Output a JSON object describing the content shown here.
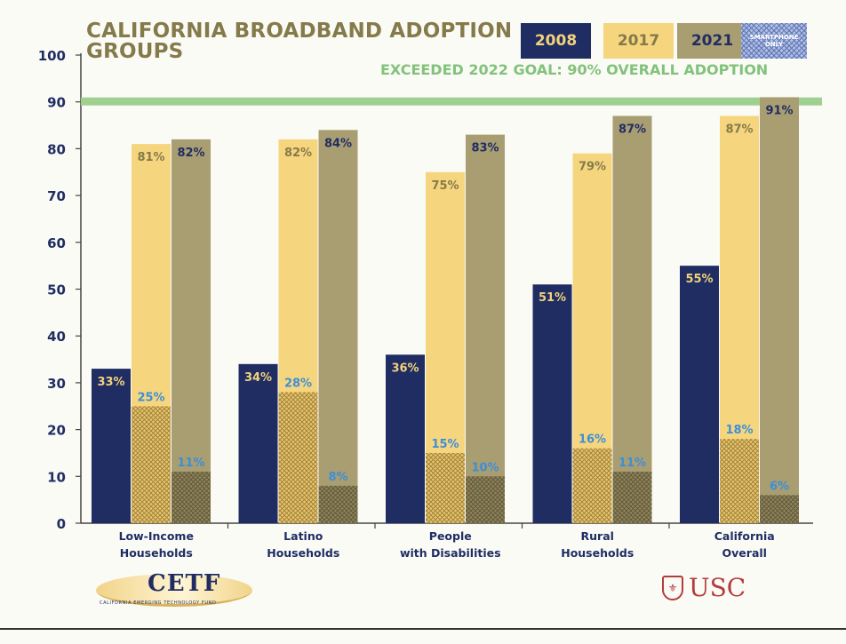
{
  "header": {
    "title_line1": "CALIFORNIA BROADBAND ADOPTION",
    "title_line2": "GROUPS",
    "goal_text": "EXCEEDED 2022 GOAL:  90% OVERALL ADOPTION"
  },
  "legend": {
    "y2008": "2008",
    "y2017": "2017",
    "y2021": "2021",
    "smartphone_line1": "SMARTPHONE",
    "smartphone_line2": "ONLY"
  },
  "logos": {
    "cetf_word": "CETF",
    "cetf_sub": "CALIFORNIA EMERGING TECHNOLOGY FUND",
    "usc_word": "USC"
  },
  "colors": {
    "navy": "#1f2d63",
    "gold": "#f6d57f",
    "khaki": "#a99d72",
    "goal_line": "#9fd08f",
    "label_blue": "#3d8fd6"
  },
  "chart_data": {
    "type": "bar",
    "title": "CALIFORNIA BROADBAND ADOPTION GROUPS",
    "ylim": [
      0,
      100
    ],
    "yticks": [
      0,
      10,
      20,
      30,
      40,
      50,
      60,
      70,
      80,
      90,
      100
    ],
    "categories": [
      [
        "Low-Income",
        "Households"
      ],
      [
        "Latino",
        "Households"
      ],
      [
        "People",
        "with Disabilities"
      ],
      [
        "Rural",
        "Households"
      ],
      [
        "California",
        "Overall"
      ]
    ],
    "series": [
      {
        "name": "2008",
        "values": [
          33,
          34,
          36,
          51,
          55
        ]
      },
      {
        "name": "2017",
        "values": [
          81,
          82,
          75,
          79,
          87
        ]
      },
      {
        "name": "2021",
        "values": [
          82,
          84,
          83,
          87,
          91
        ]
      }
    ],
    "smartphone_only": [
      {
        "name": "2017",
        "values": [
          25,
          28,
          15,
          16,
          18
        ]
      },
      {
        "name": "2021",
        "values": [
          11,
          8,
          10,
          11,
          6
        ]
      }
    ],
    "goal": {
      "value": 90,
      "label": "EXCEEDED 2022 GOAL:  90% OVERALL ADOPTION"
    }
  }
}
